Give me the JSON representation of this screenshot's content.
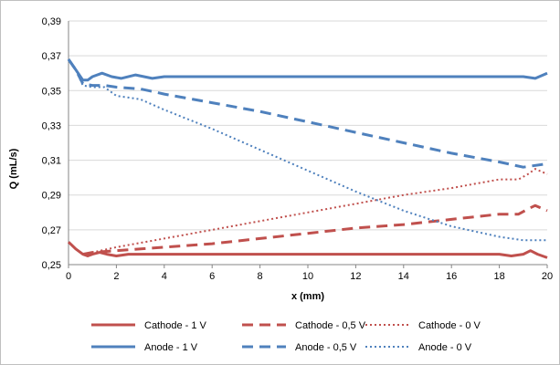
{
  "chart_data": {
    "type": "line",
    "title": "",
    "xlabel": "x (mm)",
    "ylabel": "Q (mL/s)",
    "xlim": [
      0,
      20
    ],
    "ylim": [
      0.25,
      0.39
    ],
    "x_ticks": [
      "0",
      "2",
      "4",
      "6",
      "8",
      "10",
      "12",
      "14",
      "16",
      "18",
      "20"
    ],
    "y_ticks": [
      "0,25",
      "0,27",
      "0,29",
      "0,31",
      "0,33",
      "0,35",
      "0,37",
      "0,39"
    ],
    "grid": "horizontal",
    "legend_position": "bottom",
    "series": [
      {
        "name": "Cathode - 1 V",
        "color": "#C0504D",
        "style": "solid",
        "x": [
          0,
          0.3,
          0.6,
          0.8,
          1.0,
          1.3,
          1.6,
          2.0,
          2.5,
          3.0,
          4,
          6,
          8,
          10,
          12,
          14,
          16,
          18,
          18.5,
          19.0,
          19.3,
          19.6,
          20
        ],
        "y": [
          0.263,
          0.259,
          0.256,
          0.255,
          0.256,
          0.257,
          0.256,
          0.255,
          0.256,
          0.256,
          0.256,
          0.256,
          0.256,
          0.256,
          0.256,
          0.256,
          0.256,
          0.256,
          0.255,
          0.256,
          0.258,
          0.256,
          0.254
        ]
      },
      {
        "name": "Cathode - 0,5 V",
        "color": "#C0504D",
        "style": "dashed",
        "x": [
          0.6,
          1.0,
          2,
          4,
          6,
          8,
          10,
          12,
          14,
          16,
          18,
          18.8,
          19.2,
          19.5,
          20
        ],
        "y": [
          0.256,
          0.257,
          0.258,
          0.26,
          0.262,
          0.265,
          0.268,
          0.271,
          0.273,
          0.276,
          0.279,
          0.279,
          0.282,
          0.284,
          0.281
        ]
      },
      {
        "name": "Cathode - 0 V",
        "color": "#C0504D",
        "style": "dotted",
        "x": [
          0.6,
          1.0,
          2,
          4,
          6,
          8,
          10,
          12,
          14,
          16,
          18,
          18.8,
          19.2,
          19.5,
          20
        ],
        "y": [
          0.256,
          0.257,
          0.26,
          0.265,
          0.27,
          0.275,
          0.28,
          0.285,
          0.29,
          0.294,
          0.299,
          0.299,
          0.302,
          0.305,
          0.302
        ]
      },
      {
        "name": "Anode - 1 V",
        "color": "#4F81BD",
        "style": "solid",
        "x": [
          0,
          0.3,
          0.6,
          0.8,
          1.0,
          1.4,
          1.8,
          2.2,
          2.8,
          3.5,
          4,
          6,
          8,
          10,
          12,
          14,
          16,
          18,
          19.0,
          19.5,
          20
        ],
        "y": [
          0.368,
          0.362,
          0.356,
          0.356,
          0.358,
          0.36,
          0.358,
          0.357,
          0.359,
          0.357,
          0.358,
          0.358,
          0.358,
          0.358,
          0.358,
          0.358,
          0.358,
          0.358,
          0.358,
          0.357,
          0.36
        ]
      },
      {
        "name": "Anode - 0,5 V",
        "color": "#4F81BD",
        "style": "dashed",
        "x": [
          0,
          0.3,
          0.6,
          1.0,
          1.5,
          2,
          3,
          4,
          6,
          8,
          10,
          12,
          14,
          16,
          18,
          19,
          20
        ],
        "y": [
          0.368,
          0.362,
          0.354,
          0.353,
          0.353,
          0.352,
          0.351,
          0.348,
          0.343,
          0.338,
          0.332,
          0.326,
          0.32,
          0.314,
          0.309,
          0.306,
          0.308
        ]
      },
      {
        "name": "Anode - 0 V",
        "color": "#4F81BD",
        "style": "dotted",
        "x": [
          0,
          0.3,
          0.6,
          1.0,
          1.5,
          2,
          3,
          4,
          6,
          8,
          10,
          12,
          14,
          16,
          18,
          19,
          19.5,
          20
        ],
        "y": [
          0.368,
          0.362,
          0.353,
          0.352,
          0.352,
          0.347,
          0.345,
          0.339,
          0.328,
          0.316,
          0.304,
          0.292,
          0.281,
          0.272,
          0.266,
          0.264,
          0.264,
          0.264
        ]
      }
    ]
  }
}
